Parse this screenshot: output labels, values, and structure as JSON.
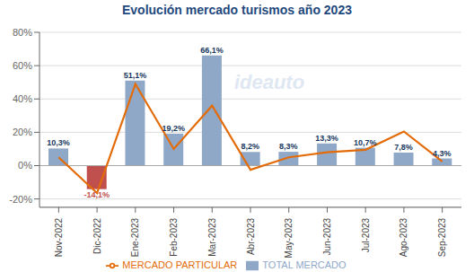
{
  "chart_data": {
    "type": "bar",
    "title": "Evolución mercado turismos año 2023",
    "categories": [
      "Nov-2022",
      "Dic-2022",
      "Ene-2023",
      "Feb-2023",
      "Mar-2023",
      "Abr-2023",
      "May-2023",
      "Jun-2023",
      "Jul-2023",
      "Ago-2023",
      "Sep-2023"
    ],
    "series": [
      {
        "name": "TOTAL MERCADO",
        "type": "bar",
        "color": "#8fa8c8",
        "colors": [
          "#8fa8c8",
          "#c0504d",
          "#8fa8c8",
          "#8fa8c8",
          "#8fa8c8",
          "#8fa8c8",
          "#8fa8c8",
          "#8fa8c8",
          "#8fa8c8",
          "#8fa8c8",
          "#8fa8c8"
        ],
        "values": [
          10.3,
          -14.1,
          51.1,
          19.2,
          66.1,
          8.2,
          8.3,
          13.3,
          10.7,
          7.8,
          4.3
        ],
        "value_labels": [
          "10,3%",
          "-14,1%",
          "51,1%",
          "19,2%",
          "66,1%",
          "8,2%",
          "8,3%",
          "13,3%",
          "10,7%",
          "7,8%",
          "4,3%"
        ]
      },
      {
        "name": "MERCADO PARTICULAR",
        "type": "line",
        "color": "#e36c09",
        "values": [
          5.0,
          -16.5,
          49.0,
          10.0,
          36.0,
          -2.5,
          5.0,
          8.0,
          9.5,
          20.5,
          2.5
        ]
      }
    ],
    "ylim": [
      -25,
      80
    ],
    "yticks": [
      {
        "value": -20,
        "label": "-20%"
      },
      {
        "value": 0,
        "label": "0%"
      },
      {
        "value": 20,
        "label": "20%"
      },
      {
        "value": 40,
        "label": "40%"
      },
      {
        "value": 60,
        "label": "60%"
      },
      {
        "value": 80,
        "label": "80%"
      }
    ],
    "grid": true,
    "legend": "bottom",
    "data_labels": true,
    "annotations": [
      "ideauto"
    ]
  }
}
